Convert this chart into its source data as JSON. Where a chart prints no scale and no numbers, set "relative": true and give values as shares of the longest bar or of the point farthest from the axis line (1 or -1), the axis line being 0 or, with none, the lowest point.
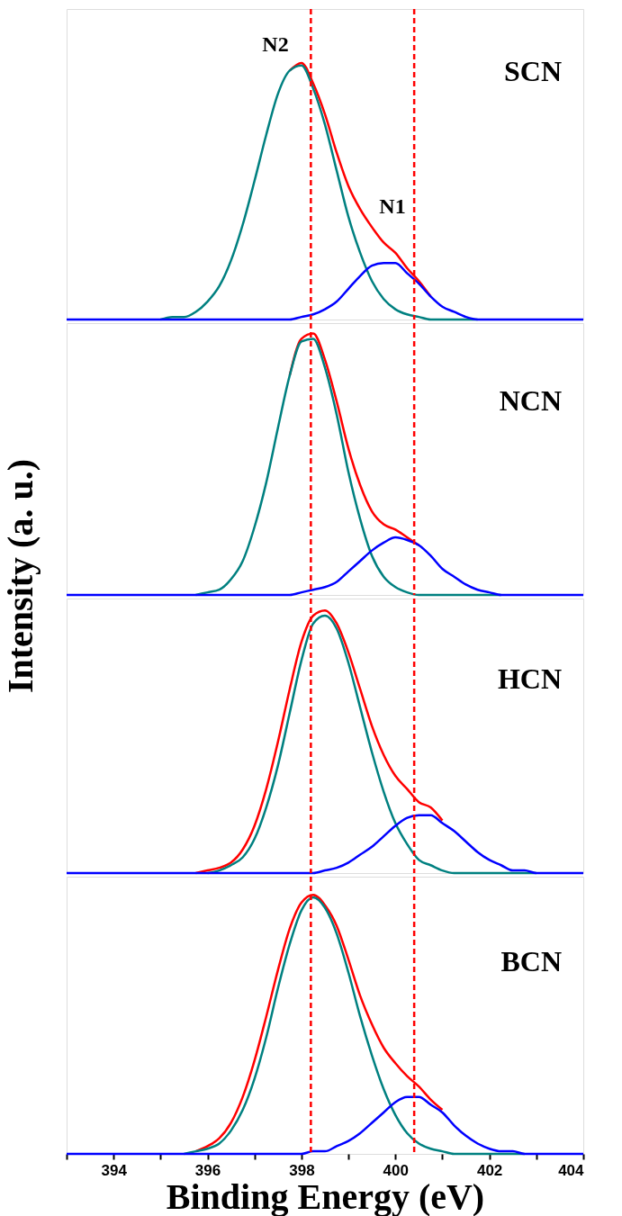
{
  "chart_data": [
    {
      "type": "line",
      "relative": true,
      "ylabel": "Intensity (a. u.)",
      "xlim": [
        393,
        404
      ],
      "tick_labels": false,
      "x": [
        393,
        395,
        395.25,
        395.5,
        395.75,
        396,
        396.25,
        396.5,
        396.75,
        397,
        397.25,
        397.5,
        397.75,
        398,
        398.25,
        398.5,
        398.75,
        399,
        399.25,
        399.5,
        399.75,
        400,
        400.25,
        400.5,
        400.75,
        401,
        401.25,
        401.5,
        401.75,
        402,
        402.25,
        402.5,
        402.75,
        403,
        404
      ],
      "series": [
        {
          "color": "#ff0000",
          "values": [
            null,
            null,
            null,
            null,
            null,
            null,
            null,
            null,
            null,
            null,
            null,
            null,
            0.97,
            1.0,
            0.92,
            0.8,
            0.65,
            0.52,
            0.43,
            0.36,
            0.3,
            0.26,
            0.2,
            0.15,
            0.09,
            null,
            null,
            null,
            null,
            null,
            null,
            null,
            null,
            null,
            null
          ]
        },
        {
          "color": "#008080",
          "values": [
            null,
            0,
            0.01,
            0.01,
            0.03,
            0.07,
            0.13,
            0.23,
            0.37,
            0.54,
            0.72,
            0.88,
            0.97,
            0.99,
            0.9,
            0.76,
            0.58,
            0.4,
            0.26,
            0.15,
            0.08,
            0.04,
            0.02,
            0.01,
            0,
            0,
            0,
            0,
            0,
            null,
            null,
            null,
            null,
            null,
            null
          ]
        },
        {
          "color": "#0000ff",
          "values": [
            0,
            0,
            0,
            0,
            0,
            0,
            0,
            0,
            0,
            0,
            0,
            0,
            0,
            0.01,
            0.02,
            0.04,
            0.07,
            0.12,
            0.17,
            0.21,
            0.22,
            0.22,
            0.18,
            0.14,
            0.09,
            0.05,
            0.03,
            0.01,
            0,
            0,
            0,
            0,
            0,
            0,
            0
          ]
        }
      ],
      "ref_lines": [
        {
          "axis": "x",
          "value": 398.2,
          "color": "#ff0000",
          "line_style": "dashed"
        },
        {
          "axis": "x",
          "value": 400.4,
          "color": "#ff0000",
          "line_style": "dashed"
        }
      ],
      "annotations": [
        "SCN",
        "N2",
        "N1"
      ]
    },
    {
      "type": "line",
      "relative": true,
      "xlim": [
        393,
        404
      ],
      "tick_labels": false,
      "x": [
        393,
        395,
        395.25,
        395.5,
        395.75,
        396,
        396.25,
        396.5,
        396.75,
        397,
        397.25,
        397.5,
        397.75,
        398,
        398.25,
        398.5,
        398.75,
        399,
        399.25,
        399.5,
        399.75,
        400,
        400.25,
        400.5,
        400.75,
        401,
        401.25,
        401.5,
        401.75,
        402,
        402.25,
        402.5,
        402.75,
        403,
        404
      ],
      "series": [
        {
          "color": "#ff0000",
          "values": [
            null,
            null,
            null,
            null,
            null,
            null,
            null,
            null,
            null,
            null,
            null,
            null,
            0.84,
            0.98,
            1.0,
            0.9,
            0.74,
            0.56,
            0.42,
            0.32,
            0.27,
            0.25,
            0.22,
            0.19,
            null,
            null,
            null,
            null,
            null,
            null,
            null,
            null,
            null,
            null,
            null
          ]
        },
        {
          "color": "#008080",
          "values": [
            null,
            null,
            null,
            null,
            0,
            0.01,
            0.02,
            0.06,
            0.13,
            0.26,
            0.43,
            0.64,
            0.84,
            0.97,
            0.98,
            0.87,
            0.69,
            0.47,
            0.29,
            0.15,
            0.07,
            0.03,
            0.01,
            0,
            0,
            0,
            0,
            0,
            0,
            0,
            0,
            null,
            null,
            null,
            null
          ]
        },
        {
          "color": "#0000ff",
          "values": [
            0,
            0,
            0,
            0,
            0,
            0,
            0,
            0,
            0,
            0,
            0,
            0,
            0,
            0.01,
            0.02,
            0.03,
            0.05,
            0.09,
            0.13,
            0.17,
            0.2,
            0.22,
            0.21,
            0.19,
            0.15,
            0.1,
            0.07,
            0.04,
            0.02,
            0.01,
            0,
            0,
            0,
            0,
            0
          ]
        }
      ],
      "ref_lines": [
        {
          "axis": "x",
          "value": 398.2,
          "color": "#ff0000",
          "line_style": "dashed"
        },
        {
          "axis": "x",
          "value": 400.4,
          "color": "#ff0000",
          "line_style": "dashed"
        }
      ],
      "annotations": [
        "NCN"
      ]
    },
    {
      "type": "line",
      "relative": true,
      "xlim": [
        393,
        404
      ],
      "tick_labels": false,
      "x": [
        393,
        395,
        395.25,
        395.5,
        395.75,
        396,
        396.25,
        396.5,
        396.75,
        397,
        397.25,
        397.5,
        397.75,
        398,
        398.25,
        398.5,
        398.75,
        399,
        399.25,
        399.5,
        399.75,
        400,
        400.25,
        400.5,
        400.75,
        401,
        401.25,
        401.5,
        401.75,
        402,
        402.25,
        402.5,
        402.75,
        403,
        404
      ],
      "series": [
        {
          "color": "#ff0000",
          "values": [
            null,
            null,
            null,
            null,
            0,
            0.01,
            0.02,
            0.04,
            0.09,
            0.18,
            0.32,
            0.5,
            0.7,
            0.88,
            0.98,
            1.0,
            0.95,
            0.84,
            0.7,
            0.56,
            0.45,
            0.37,
            0.32,
            0.27,
            0.25,
            0.2,
            null,
            null,
            null,
            null,
            null,
            null,
            null,
            null,
            null
          ]
        },
        {
          "color": "#008080",
          "values": [
            null,
            null,
            null,
            null,
            null,
            0,
            0.01,
            0.03,
            0.06,
            0.13,
            0.25,
            0.41,
            0.61,
            0.81,
            0.95,
            0.98,
            0.93,
            0.8,
            0.63,
            0.46,
            0.31,
            0.19,
            0.11,
            0.05,
            0.03,
            0.01,
            0,
            0,
            0,
            0,
            0,
            0,
            0,
            0,
            null
          ]
        },
        {
          "color": "#0000ff",
          "values": [
            0,
            0,
            0,
            0,
            0,
            0,
            0,
            0,
            0,
            0,
            0,
            0,
            0,
            0,
            0,
            0.01,
            0.02,
            0.04,
            0.07,
            0.1,
            0.14,
            0.18,
            0.21,
            0.22,
            0.22,
            0.19,
            0.16,
            0.12,
            0.08,
            0.05,
            0.03,
            0.01,
            0.01,
            0,
            0
          ]
        }
      ],
      "ref_lines": [
        {
          "axis": "x",
          "value": 398.2,
          "color": "#ff0000",
          "line_style": "dashed"
        },
        {
          "axis": "x",
          "value": 400.4,
          "color": "#ff0000",
          "line_style": "dashed"
        }
      ],
      "annotations": [
        "HCN"
      ]
    },
    {
      "type": "line",
      "relative": true,
      "xlabel": "Binding Energy (eV)",
      "xlim": [
        393,
        404
      ],
      "tick_labels": "x",
      "xticks": [
        {
          "value": 393,
          "label": null
        },
        394,
        {
          "value": 395,
          "label": null
        },
        396,
        {
          "value": 397,
          "label": null
        },
        398,
        {
          "value": 399,
          "label": null
        },
        400,
        {
          "value": 401,
          "label": null
        },
        402,
        {
          "value": 403,
          "label": null
        },
        404
      ],
      "x": [
        393,
        395,
        395.25,
        395.5,
        395.75,
        396,
        396.25,
        396.5,
        396.75,
        397,
        397.25,
        397.5,
        397.75,
        398,
        398.25,
        398.5,
        398.75,
        399,
        399.25,
        399.5,
        399.75,
        400,
        400.25,
        400.5,
        400.75,
        401,
        401.25,
        401.5,
        401.75,
        402,
        402.25,
        402.5,
        402.75,
        403,
        404
      ],
      "series": [
        {
          "color": "#ff0000",
          "values": [
            null,
            null,
            null,
            null,
            0.01,
            0.03,
            0.06,
            0.12,
            0.22,
            0.36,
            0.53,
            0.71,
            0.87,
            0.97,
            1.0,
            0.96,
            0.88,
            0.75,
            0.61,
            0.5,
            0.41,
            0.35,
            0.3,
            0.26,
            0.21,
            0.17,
            null,
            null,
            null,
            null,
            null,
            null,
            null,
            null,
            null
          ]
        },
        {
          "color": "#008080",
          "values": [
            null,
            null,
            null,
            0,
            0.01,
            0.02,
            0.04,
            0.09,
            0.17,
            0.29,
            0.45,
            0.64,
            0.81,
            0.94,
            0.99,
            0.95,
            0.85,
            0.7,
            0.53,
            0.38,
            0.25,
            0.15,
            0.08,
            0.04,
            0.02,
            0.01,
            0,
            0,
            0,
            0,
            0,
            0,
            0,
            null,
            null
          ]
        },
        {
          "color": "#0000ff",
          "values": [
            0,
            0,
            0,
            0,
            0,
            0,
            0,
            0,
            0,
            0,
            0,
            0,
            0,
            0,
            0.01,
            0.01,
            0.03,
            0.05,
            0.08,
            0.12,
            0.16,
            0.2,
            0.22,
            0.22,
            0.19,
            0.16,
            0.11,
            0.07,
            0.04,
            0.02,
            0.01,
            0.01,
            0,
            0,
            0
          ]
        }
      ],
      "ref_lines": [
        {
          "axis": "x",
          "value": 398.2,
          "color": "#ff0000",
          "line_style": "dashed"
        },
        {
          "axis": "x",
          "value": 400.4,
          "color": "#ff0000",
          "line_style": "dashed"
        }
      ],
      "annotations": [
        "BCN"
      ]
    }
  ]
}
